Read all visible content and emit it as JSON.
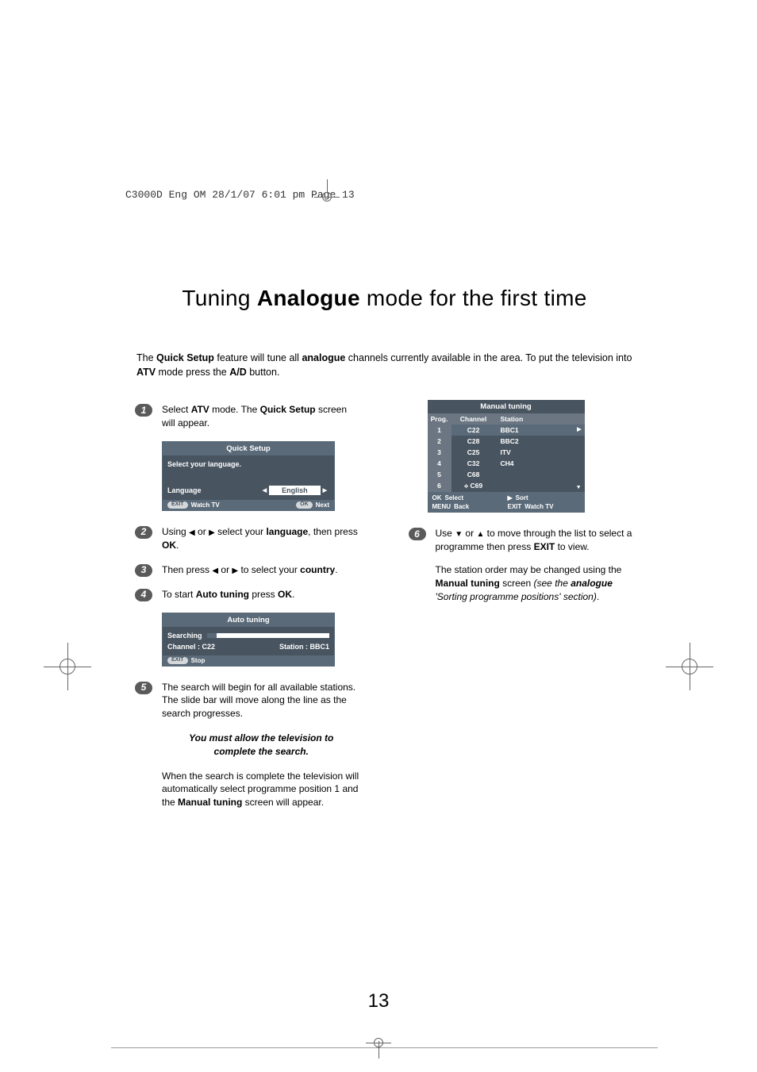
{
  "header_text": "C3000D Eng OM  28/1/07  6:01 pm  Page 13",
  "title_prefix": "Tuning ",
  "title_bold": "Analogue",
  "title_suffix": " mode for the first time",
  "intro_html": "The <b>Quick Setup</b> feature will tune all <b>analogue</b> channels currently available in the area. To put the television into <b>ATV</b> mode press the <b>A/D</b> button.",
  "steps": {
    "s1": "Select <b>ATV</b> mode. The <b>Quick Setup</b> screen will appear.",
    "s2": "Using <span class='tri'>◀</span> or <span class='tri'>▶</span> select your <b>language</b>, then press <b>OK</b>.",
    "s3": "Then press <span class='tri'>◀</span> or <span class='tri'>▶</span> to select your <b>country</b>.",
    "s4": "To start <b>Auto tuning</b> press <b>OK</b>.",
    "s5a": "The search will begin for all available stations. The slide bar will move along the line as the search progresses.",
    "s5_emph": "You must allow the television to complete the search.",
    "s5b": "When the search is complete the television will automatically select programme position 1 and the <b>Manual tuning</b> screen will appear.",
    "s6a": "Use <span class='tri'>▼</span> or <span class='tri'>▲</span> to move through the list to select a programme then press <b>EXIT</b> to view.",
    "s6b": "The station order may be changed using the <b>Manual tuning</b> screen <i>(see the <b>analogue</b> 'Sorting programme positions' section)</i>."
  },
  "quick_setup": {
    "title": "Quick Setup",
    "prompt": "Select your language.",
    "language_label": "Language",
    "language_value": "English",
    "footer_exit": "EXIT",
    "footer_watch": "Watch TV",
    "footer_ok": "OK",
    "footer_next": "Next"
  },
  "auto_tuning": {
    "title": "Auto tuning",
    "searching": "Searching",
    "channel": "Channel  :  C22",
    "station": "Station : BBC1",
    "footer_exit": "EXIT",
    "footer_stop": "Stop"
  },
  "manual_tuning": {
    "title": "Manual tuning",
    "columns": [
      "Prog.",
      "Channel",
      "Station"
    ],
    "rows": [
      {
        "prog": "1",
        "channel": "C22",
        "station": "BBC1"
      },
      {
        "prog": "2",
        "channel": "C28",
        "station": "BBC2"
      },
      {
        "prog": "3",
        "channel": "C25",
        "station": "ITV"
      },
      {
        "prog": "4",
        "channel": "C32",
        "station": "CH4"
      },
      {
        "prog": "5",
        "channel": "C68",
        "station": ""
      },
      {
        "prog": "6",
        "channel": "C69",
        "station": ""
      }
    ],
    "footer_ok": "OK",
    "footer_select": "Select",
    "footer_sort_icon": "▶",
    "footer_sort": "Sort",
    "footer_menu": "MENU",
    "footer_back": "Back",
    "footer_exit": "EXIT",
    "footer_watch": "Watch TV"
  },
  "page_number": "13"
}
